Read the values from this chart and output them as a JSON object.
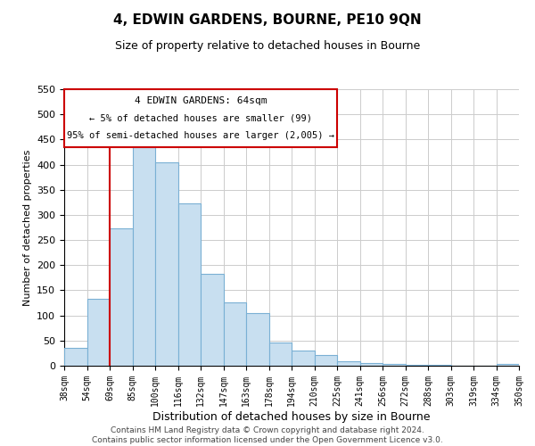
{
  "title": "4, EDWIN GARDENS, BOURNE, PE10 9QN",
  "subtitle": "Size of property relative to detached houses in Bourne",
  "xlabel": "Distribution of detached houses by size in Bourne",
  "ylabel": "Number of detached properties",
  "categories": [
    "38sqm",
    "54sqm",
    "69sqm",
    "85sqm",
    "100sqm",
    "116sqm",
    "132sqm",
    "147sqm",
    "163sqm",
    "178sqm",
    "194sqm",
    "210sqm",
    "225sqm",
    "241sqm",
    "256sqm",
    "272sqm",
    "288sqm",
    "303sqm",
    "319sqm",
    "334sqm",
    "350sqm"
  ],
  "values": [
    35,
    133,
    274,
    435,
    405,
    323,
    183,
    126,
    104,
    46,
    30,
    21,
    8,
    5,
    3,
    1,
    1,
    0,
    0,
    4
  ],
  "bar_color": "#c8dff0",
  "bar_edge_color": "#7ab0d4",
  "vline_x_index": 2,
  "vline_color": "#cc0000",
  "ylim": [
    0,
    550
  ],
  "yticks": [
    0,
    50,
    100,
    150,
    200,
    250,
    300,
    350,
    400,
    450,
    500,
    550
  ],
  "annotation_title": "4 EDWIN GARDENS: 64sqm",
  "annotation_line1": "← 5% of detached houses are smaller (99)",
  "annotation_line2": "95% of semi-detached houses are larger (2,005) →",
  "annotation_box_color": "#ffffff",
  "annotation_box_edge": "#cc0000",
  "footer_line1": "Contains HM Land Registry data © Crown copyright and database right 2024.",
  "footer_line2": "Contains public sector information licensed under the Open Government Licence v3.0.",
  "background_color": "#ffffff",
  "grid_color": "#cccccc"
}
